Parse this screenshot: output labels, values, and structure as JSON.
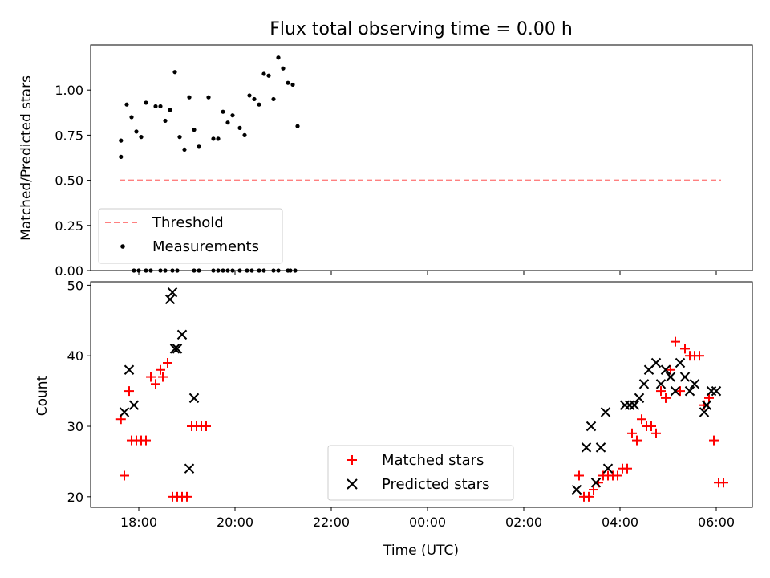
{
  "chart_data": [
    {
      "type": "scatter",
      "title": "Flux total observing time = 0.00 h",
      "xlabel": "",
      "ylabel": "Matched/Predicted stars",
      "xlim": [
        -7.0,
        6.75
      ],
      "ylim": [
        0,
        1.25
      ],
      "yticks": [
        0.0,
        0.25,
        0.5,
        0.75,
        1.0
      ],
      "ytick_labels": [
        "0.00",
        "0.25",
        "0.50",
        "0.75",
        "1.00"
      ],
      "threshold": {
        "name": "Threshold",
        "y": 0.5,
        "x": [
          -6.4,
          6.1
        ],
        "color": "#ff8080"
      },
      "measurements": {
        "name": "Measurements",
        "color": "#000000",
        "x": [
          -6.37,
          -6.25,
          -6.15,
          -6.05,
          -5.95,
          -5.85,
          -5.65,
          -5.55,
          -5.45,
          -5.35,
          -5.25,
          -5.15,
          -5.05,
          -4.95,
          -4.85,
          -4.75,
          -4.55,
          -4.45,
          -4.35,
          -4.25,
          -4.15,
          -4.05,
          -3.9,
          -3.8,
          -3.7,
          -3.6,
          -3.5,
          -3.4,
          -3.3,
          -3.2,
          -3.1,
          -3.0,
          -2.9,
          -2.8,
          -2.7,
          -6.37,
          -6.1,
          -6.0,
          -5.85,
          -5.75,
          -5.55,
          -5.45,
          -5.3,
          -5.2,
          -4.85,
          -4.75,
          -4.45,
          -4.35,
          -4.25,
          -4.15,
          -4.05,
          -3.9,
          -3.75,
          -3.65,
          -3.5,
          -3.4,
          -3.2,
          -3.1,
          -2.9,
          -2.85,
          -2.75
        ],
        "y": [
          0.72,
          0.92,
          0.85,
          0.77,
          0.74,
          0.93,
          0.91,
          0.91,
          0.83,
          0.89,
          1.1,
          0.74,
          0.67,
          0.96,
          0.78,
          0.69,
          0.96,
          0.73,
          0.73,
          0.88,
          0.82,
          0.86,
          0.79,
          0.75,
          0.97,
          0.95,
          0.92,
          1.09,
          1.08,
          0.95,
          1.18,
          1.12,
          1.04,
          1.03,
          0.8,
          0.63,
          0,
          0,
          0,
          0,
          0,
          0,
          0,
          0,
          0,
          0,
          0,
          0,
          0,
          0,
          0,
          0,
          0,
          0,
          0,
          0,
          0,
          0,
          0,
          0,
          0
        ]
      }
    },
    {
      "type": "scatter",
      "title": "",
      "xlabel": "Time (UTC)",
      "ylabel": "Count",
      "xlim": [
        -7.0,
        6.75
      ],
      "ylim": [
        18.5,
        50.5
      ],
      "yticks": [
        20,
        30,
        40,
        50
      ],
      "xticks": [
        -6,
        -4,
        -2,
        0,
        2,
        4,
        6
      ],
      "xtick_labels": [
        "18:00",
        "20:00",
        "22:00",
        "00:00",
        "02:00",
        "04:00",
        "06:00"
      ],
      "series": [
        {
          "name": "Matched stars",
          "marker": "+",
          "color": "#ff0000",
          "x": [
            -6.37,
            -6.3,
            -6.2,
            -6.15,
            -6.05,
            -5.95,
            -5.85,
            -5.75,
            -5.65,
            -5.55,
            -5.5,
            -5.4,
            -5.3,
            -5.2,
            -5.1,
            -5.0,
            -4.9,
            -4.8,
            -4.7,
            -4.6,
            3.15,
            3.25,
            3.35,
            3.45,
            3.55,
            3.65,
            3.75,
            3.85,
            3.95,
            4.05,
            4.15,
            4.25,
            4.35,
            4.45,
            4.55,
            4.65,
            4.75,
            4.85,
            4.95,
            5.05,
            5.15,
            5.25,
            5.35,
            5.45,
            5.55,
            5.65,
            5.75,
            5.85,
            5.95,
            6.05,
            6.15
          ],
          "y": [
            31,
            23,
            35,
            28,
            28,
            28,
            28,
            37,
            36,
            38,
            37,
            39,
            20,
            20,
            20,
            20,
            30,
            30,
            30,
            30,
            23,
            20,
            20,
            21,
            22,
            23,
            23,
            23,
            23,
            24,
            24,
            29,
            28,
            31,
            30,
            30,
            29,
            35,
            34,
            38,
            42,
            35,
            41,
            40,
            40,
            40,
            33,
            34,
            28,
            22,
            22
          ]
        },
        {
          "name": "Predicted stars",
          "marker": "x",
          "color": "#000000",
          "x": [
            -6.3,
            -6.2,
            -6.1,
            -5.35,
            -5.3,
            -5.25,
            -5.2,
            -5.1,
            -4.95,
            -4.85,
            3.1,
            3.3,
            3.4,
            3.5,
            3.6,
            3.7,
            3.75,
            4.1,
            4.2,
            4.3,
            4.4,
            4.5,
            4.6,
            4.75,
            4.85,
            4.95,
            5.05,
            5.15,
            5.25,
            5.35,
            5.45,
            5.55,
            5.75,
            5.8,
            5.9,
            6.0
          ],
          "y": [
            32,
            38,
            33,
            48,
            49,
            41,
            41,
            43,
            24,
            34,
            21,
            27,
            30,
            22,
            27,
            32,
            24,
            33,
            33,
            33,
            34,
            36,
            38,
            39,
            36,
            38,
            37,
            35,
            39,
            37,
            35,
            36,
            32,
            33,
            35,
            35
          ]
        }
      ]
    }
  ]
}
